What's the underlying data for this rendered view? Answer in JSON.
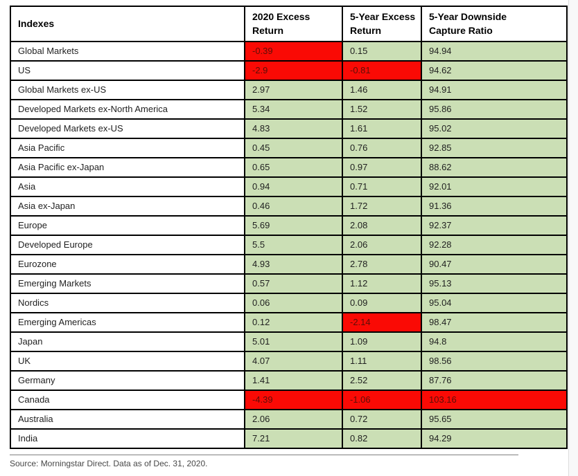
{
  "page": {
    "source_note": "Source: Morningstar Direct. Data as of Dec. 31, 2020."
  },
  "colors": {
    "green_cell": "#cbdfb5",
    "red_cell": "#fa0a05",
    "red_cell_text": "#5c0f08",
    "text": "#1f1f1f",
    "border": "#000000"
  },
  "chart_data": {
    "type": "table",
    "columns": [
      "Indexes",
      "2020 Excess\nReturn",
      "5-Year Excess\nReturn",
      "5-Year Downside\nCapture Ratio"
    ],
    "highlight_rule": "red cell = negative excess return or downside capture ratio above 100; green cell otherwise",
    "rows": [
      {
        "name": "Global Markets",
        "cells": [
          {
            "v": "-0.39",
            "red": true
          },
          {
            "v": "0.15",
            "red": false
          },
          {
            "v": "94.94",
            "red": false
          }
        ]
      },
      {
        "name": "US",
        "cells": [
          {
            "v": "-2.9",
            "red": true
          },
          {
            "v": "-0.81",
            "red": true
          },
          {
            "v": "94.62",
            "red": false
          }
        ]
      },
      {
        "name": "Global Markets ex-US",
        "cells": [
          {
            "v": "2.97",
            "red": false
          },
          {
            "v": "1.46",
            "red": false
          },
          {
            "v": "94.91",
            "red": false
          }
        ]
      },
      {
        "name": "Developed Markets ex-North America",
        "cells": [
          {
            "v": "5.34",
            "red": false
          },
          {
            "v": "1.52",
            "red": false
          },
          {
            "v": "95.86",
            "red": false
          }
        ]
      },
      {
        "name": "Developed Markets ex-US",
        "cells": [
          {
            "v": "4.83",
            "red": false
          },
          {
            "v": "1.61",
            "red": false
          },
          {
            "v": "95.02",
            "red": false
          }
        ]
      },
      {
        "name": "Asia Pacific",
        "cells": [
          {
            "v": "0.45",
            "red": false
          },
          {
            "v": "0.76",
            "red": false
          },
          {
            "v": "92.85",
            "red": false
          }
        ]
      },
      {
        "name": "Asia Pacific ex-Japan",
        "cells": [
          {
            "v": "0.65",
            "red": false
          },
          {
            "v": "0.97",
            "red": false
          },
          {
            "v": "88.62",
            "red": false
          }
        ]
      },
      {
        "name": "Asia",
        "cells": [
          {
            "v": "0.94",
            "red": false
          },
          {
            "v": "0.71",
            "red": false
          },
          {
            "v": "92.01",
            "red": false
          }
        ]
      },
      {
        "name": "Asia ex-Japan",
        "cells": [
          {
            "v": "0.46",
            "red": false
          },
          {
            "v": "1.72",
            "red": false
          },
          {
            "v": "91.36",
            "red": false
          }
        ]
      },
      {
        "name": "Europe",
        "cells": [
          {
            "v": "5.69",
            "red": false
          },
          {
            "v": "2.08",
            "red": false
          },
          {
            "v": "92.37",
            "red": false
          }
        ]
      },
      {
        "name": "Developed Europe",
        "cells": [
          {
            "v": "5.5",
            "red": false
          },
          {
            "v": "2.06",
            "red": false
          },
          {
            "v": "92.28",
            "red": false
          }
        ]
      },
      {
        "name": "Eurozone",
        "cells": [
          {
            "v": "4.93",
            "red": false
          },
          {
            "v": "2.78",
            "red": false
          },
          {
            "v": "90.47",
            "red": false
          }
        ]
      },
      {
        "name": "Emerging Markets",
        "cells": [
          {
            "v": "0.57",
            "red": false
          },
          {
            "v": "1.12",
            "red": false
          },
          {
            "v": "95.13",
            "red": false
          }
        ]
      },
      {
        "name": "Nordics",
        "cells": [
          {
            "v": "0.06",
            "red": false
          },
          {
            "v": "0.09",
            "red": false
          },
          {
            "v": "95.04",
            "red": false
          }
        ]
      },
      {
        "name": "Emerging Americas",
        "cells": [
          {
            "v": "0.12",
            "red": false
          },
          {
            "v": "-2.14",
            "red": true
          },
          {
            "v": "98.47",
            "red": false
          }
        ]
      },
      {
        "name": "Japan",
        "cells": [
          {
            "v": "5.01",
            "red": false
          },
          {
            "v": "1.09",
            "red": false
          },
          {
            "v": "94.8",
            "red": false
          }
        ]
      },
      {
        "name": "UK",
        "cells": [
          {
            "v": "4.07",
            "red": false
          },
          {
            "v": "1.11",
            "red": false
          },
          {
            "v": "98.56",
            "red": false
          }
        ]
      },
      {
        "name": "Germany",
        "cells": [
          {
            "v": "1.41",
            "red": false
          },
          {
            "v": "2.52",
            "red": false
          },
          {
            "v": "87.76",
            "red": false
          }
        ]
      },
      {
        "name": "Canada",
        "cells": [
          {
            "v": "-4.39",
            "red": true
          },
          {
            "v": "-1.06",
            "red": true
          },
          {
            "v": "103.16",
            "red": true
          }
        ]
      },
      {
        "name": "Australia",
        "cells": [
          {
            "v": "2.06",
            "red": false
          },
          {
            "v": "0.72",
            "red": false
          },
          {
            "v": "95.65",
            "red": false
          }
        ]
      },
      {
        "name": "India",
        "cells": [
          {
            "v": "7.21",
            "red": false
          },
          {
            "v": "0.82",
            "red": false
          },
          {
            "v": "94.29",
            "red": false
          }
        ]
      }
    ]
  }
}
